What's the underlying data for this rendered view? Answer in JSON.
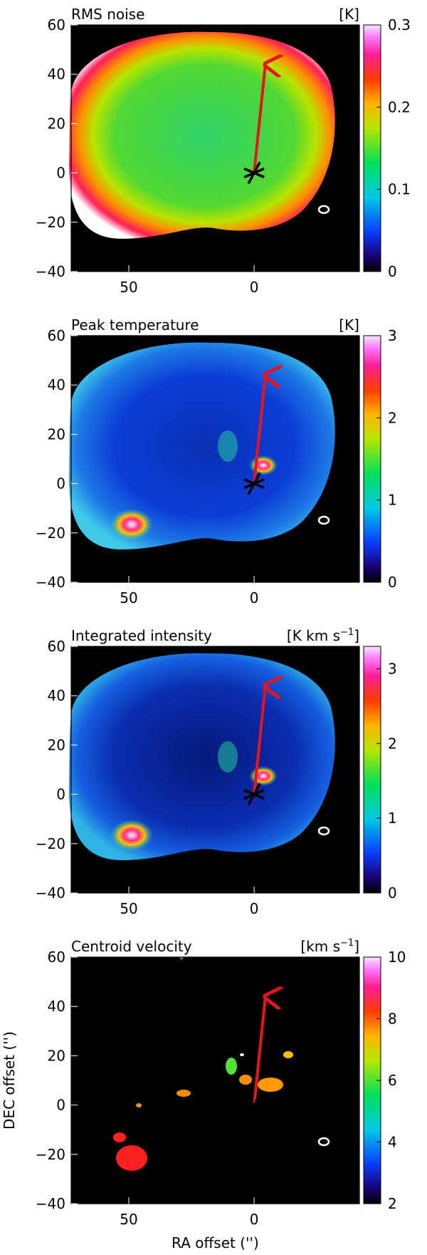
{
  "chart_data": [
    {
      "type": "heatmap",
      "title": "RMS noise",
      "unit": "[K]",
      "colorbar": {
        "ticks": [
          "0",
          "0.1",
          "0.2",
          "0.3"
        ],
        "range": [
          0,
          0.3
        ]
      },
      "x_ticks": [
        "50",
        "0"
      ],
      "y_ticks": [
        "60",
        "40",
        "20",
        "0",
        "−20",
        "−40"
      ],
      "xlim": [
        73,
        -42
      ],
      "ylim": [
        -40,
        60
      ],
      "xlabel": "",
      "ylabel": ""
    },
    {
      "type": "heatmap",
      "title": "Peak temperature",
      "unit": "[K]",
      "colorbar": {
        "ticks": [
          "0",
          "1",
          "2",
          "3"
        ],
        "range": [
          0,
          3
        ]
      },
      "x_ticks": [
        "50",
        "0"
      ],
      "y_ticks": [
        "60",
        "40",
        "20",
        "0",
        "−20",
        "−40"
      ],
      "xlim": [
        73,
        -42
      ],
      "ylim": [
        -40,
        60
      ],
      "xlabel": "",
      "ylabel": ""
    },
    {
      "type": "heatmap",
      "title": "Integrated intensity",
      "unit": "[K km s",
      "unit_sup": "−1",
      "unit_end": "]",
      "colorbar": {
        "ticks": [
          "0",
          "1",
          "2",
          "3"
        ],
        "range": [
          0,
          3.3
        ]
      },
      "x_ticks": [
        "50",
        "0"
      ],
      "y_ticks": [
        "60",
        "40",
        "20",
        "0",
        "−20",
        "−40"
      ],
      "xlim": [
        73,
        -42
      ],
      "ylim": [
        -40,
        60
      ],
      "xlabel": "",
      "ylabel": ""
    },
    {
      "type": "heatmap",
      "title": "Centroid velocity",
      "unit": "[km s",
      "unit_sup": "−1",
      "unit_end": "]",
      "colorbar": {
        "ticks": [
          "2",
          "4",
          "6",
          "8",
          "10"
        ],
        "range": [
          2,
          10
        ]
      },
      "x_ticks": [
        "50",
        "0"
      ],
      "y_ticks": [
        "60",
        "40",
        "20",
        "0",
        "−20",
        "−40"
      ],
      "xlim": [
        73,
        -42
      ],
      "ylim": [
        -40,
        60
      ],
      "xlabel": "RA offset ('')",
      "ylabel": "DEC offset ('')"
    }
  ],
  "colors": {
    "background": "#000000",
    "arrow": "#e8141c",
    "marker": "#000000",
    "beam": "#ffffff"
  }
}
